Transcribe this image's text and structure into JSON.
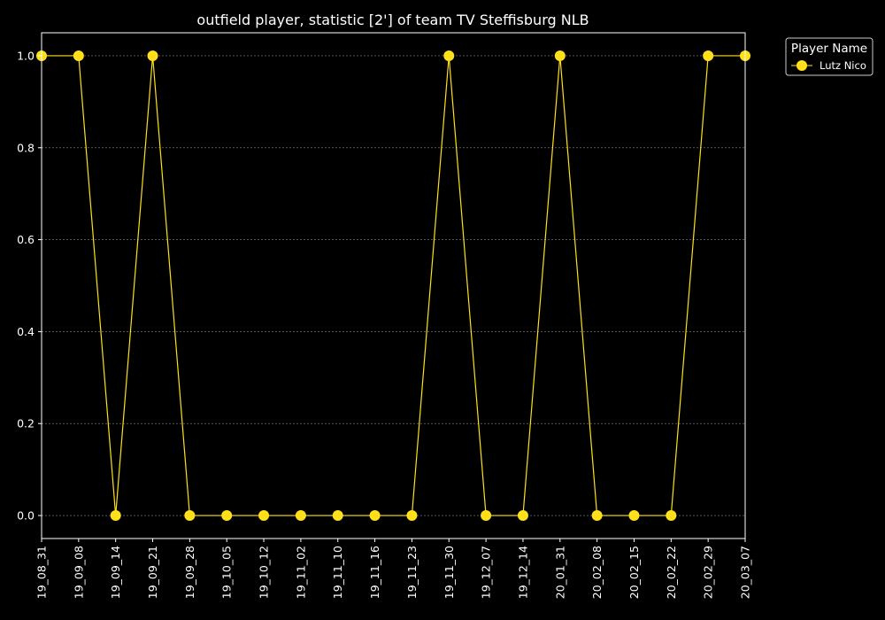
{
  "chart_data": {
    "type": "line",
    "title": "outfield player, statistic [2'] of team TV Steffisburg NLB",
    "xlabel": "",
    "ylabel": "",
    "categories": [
      "19_08_31",
      "19_09_08",
      "19_09_14",
      "19_09_21",
      "19_09_28",
      "19_10_05",
      "19_10_12",
      "19_11_02",
      "19_11_10",
      "19_11_16",
      "19_11_23",
      "19_11_30",
      "19_12_07",
      "19_12_14",
      "20_01_31",
      "20_02_08",
      "20_02_15",
      "20_02_22",
      "20_02_29",
      "20_03_07"
    ],
    "series": [
      {
        "name": "Lutz Nico",
        "color": "#FFE01A",
        "values": [
          1,
          1,
          0,
          1,
          0,
          0,
          0,
          0,
          0,
          0,
          0,
          1,
          0,
          0,
          1,
          0,
          0,
          0,
          1,
          1
        ]
      }
    ],
    "yticks": [
      "0.0",
      "0.2",
      "0.4",
      "0.6",
      "0.8",
      "1.0"
    ],
    "ylim": [
      -0.05,
      1.05
    ],
    "grid": "horizontal-dashed",
    "legend": {
      "title": "Player Name",
      "placement": "outside-top-right"
    },
    "colors": {
      "background": "#000000",
      "foreground": "#ffffff",
      "grid": "#888888"
    }
  }
}
